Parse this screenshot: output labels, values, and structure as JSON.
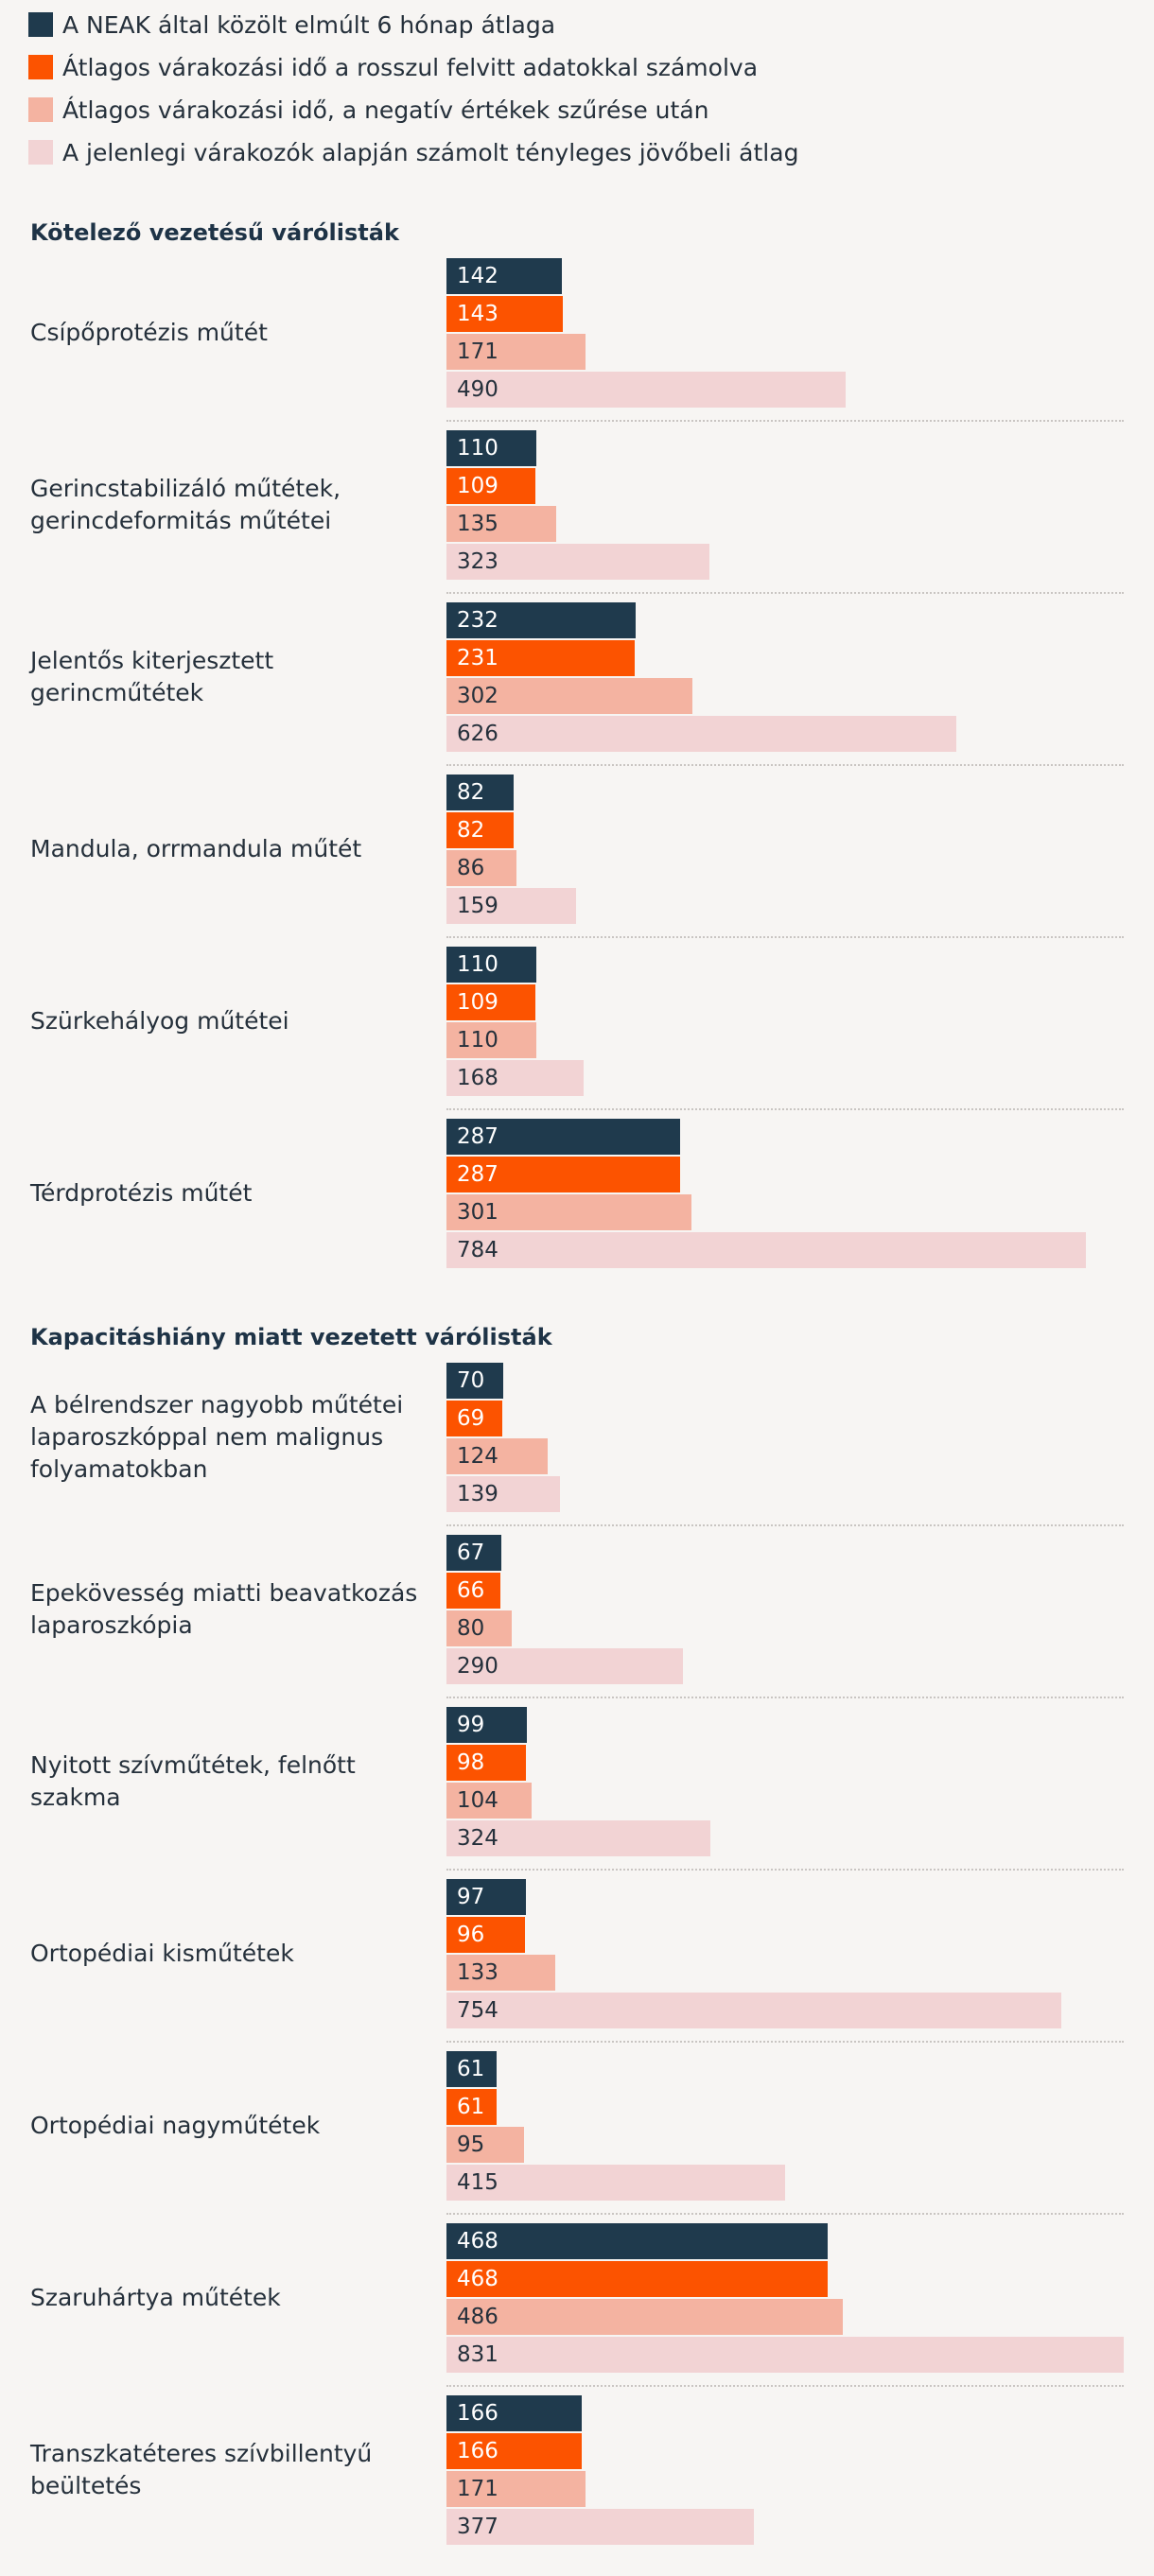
{
  "colors": {
    "background": "#f7f5f3",
    "neak": "#1f3a4d",
    "wrong_data": "#fc5300",
    "filtered": "#f4b3a1",
    "future": "#f2d3d4",
    "text_dark": "#25303b"
  },
  "legend": [
    {
      "label": "A NEAK által közölt elmúlt 6 hónap átlaga",
      "color": "#1f3a4d"
    },
    {
      "label": "Átlagos várakozási idő a rosszul felvitt adatokkal számolva",
      "color": "#fc5300"
    },
    {
      "label": "Átlagos várakozási idő, a negatív értékek szűrése után",
      "color": "#f4b3a1"
    },
    {
      "label": "A jelenlegi várakozók alapján számolt tényleges jövőbeli átlag",
      "color": "#f2d3d4"
    }
  ],
  "chart_data": {
    "type": "bar",
    "orientation": "horizontal",
    "series_names": [
      "A NEAK által közölt elmúlt 6 hónap átlaga",
      "Átlagos várakozási idő a rosszul felvitt adatokkal számolva",
      "Átlagos várakozási idő, a negatív értékek szűrése után",
      "A jelenlegi várakozók alapján számolt tényleges jövőbeli átlag"
    ],
    "xlim": [
      0,
      831
    ],
    "sections": [
      {
        "title": "Kötelező vezetésű várólisták",
        "groups": [
          {
            "label": [
              "Csípőprotézis műtét"
            ],
            "values": [
              142,
              143,
              171,
              490
            ]
          },
          {
            "label": [
              "Gerincstabilizáló műtétek,",
              "gerincdeformitás műtétei"
            ],
            "values": [
              110,
              109,
              135,
              323
            ]
          },
          {
            "label": [
              "Jelentős kiterjesztett gerincműtétek"
            ],
            "values": [
              232,
              231,
              302,
              626
            ]
          },
          {
            "label": [
              "Mandula, orrmandula műtét"
            ],
            "values": [
              82,
              82,
              86,
              159
            ]
          },
          {
            "label": [
              "Szürkehályog műtétei"
            ],
            "values": [
              110,
              109,
              110,
              168
            ]
          },
          {
            "label": [
              "Térdprotézis műtét"
            ],
            "values": [
              287,
              287,
              301,
              784
            ]
          }
        ]
      },
      {
        "title": "Kapacitáshiány miatt vezetett várólisták",
        "groups": [
          {
            "label": [
              "A bélrendszer nagyobb műtétei",
              "laparoszkóppal nem malignus",
              "folyamatokban"
            ],
            "values": [
              70,
              69,
              124,
              139
            ]
          },
          {
            "label": [
              "Epekövesség miatti beavatkozás",
              "laparoszkópia"
            ],
            "values": [
              67,
              66,
              80,
              290
            ]
          },
          {
            "label": [
              "Nyitott szívműtétek, felnőtt szakma"
            ],
            "values": [
              99,
              98,
              104,
              324
            ]
          },
          {
            "label": [
              "Ortopédiai kisműtétek"
            ],
            "values": [
              97,
              96,
              133,
              754
            ]
          },
          {
            "label": [
              "Ortopédiai nagyműtétek"
            ],
            "values": [
              61,
              61,
              95,
              415
            ]
          },
          {
            "label": [
              "Szaruhártya műtétek"
            ],
            "values": [
              468,
              468,
              486,
              831
            ]
          },
          {
            "label": [
              "Transzkatéteres szívbillentyű",
              "beültetés"
            ],
            "values": [
              166,
              166,
              171,
              377
            ]
          }
        ]
      }
    ]
  }
}
